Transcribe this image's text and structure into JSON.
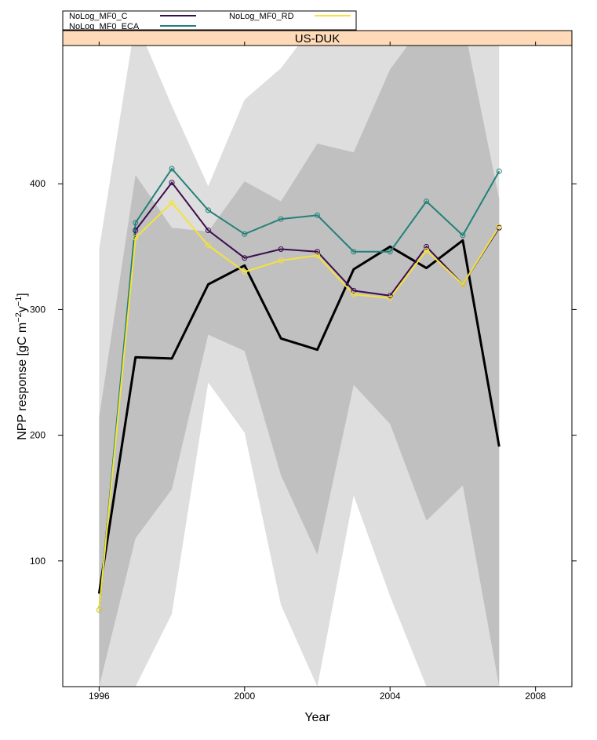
{
  "chart_data": {
    "type": "line",
    "panel_title": "US-DUK",
    "xlabel": "Year",
    "ylabel": "NPP response [gC m^-2 y^-1]",
    "xlim": [
      1995,
      2009
    ],
    "ylim": [
      0,
      510
    ],
    "x_ticks": [
      1996,
      2000,
      2004,
      2008
    ],
    "y_ticks": [
      100,
      200,
      300,
      400
    ],
    "legend_placement": "top-left, outside plot",
    "colors": {
      "strip_fill": "#ffdab9",
      "band_outer": "#dedede",
      "band_inner": "#c0c0c0",
      "observed": "#000000"
    },
    "x": [
      1996,
      1997,
      1998,
      1999,
      2000,
      2001,
      2002,
      2003,
      2004,
      2005,
      2006,
      2007
    ],
    "bands": [
      {
        "id": "outer",
        "lower": [
          0,
          0,
          58,
          242,
          202,
          65,
          0,
          152,
          72,
          0,
          0,
          0
        ],
        "upper": [
          348,
          530,
          462,
          398,
          467,
          492,
          530,
          530,
          530,
          530,
          530,
          530
        ]
      },
      {
        "id": "inner",
        "lower": [
          0,
          118,
          157,
          280,
          267,
          168,
          105,
          240,
          209,
          132,
          160,
          0
        ],
        "upper": [
          214,
          407,
          365,
          362,
          402,
          386,
          432,
          425,
          491,
          530,
          530,
          388
        ]
      }
    ],
    "observed": {
      "values": [
        74,
        262,
        261,
        320,
        335,
        277,
        268,
        332,
        350,
        333,
        355,
        191
      ]
    },
    "series": [
      {
        "name": "NoLog_MF0_C",
        "color": "#3b0f4f",
        "values": [
          61,
          363,
          401,
          363,
          341,
          348,
          346,
          315,
          311,
          350,
          320,
          365
        ]
      },
      {
        "name": "NoLog_MF0_ECA",
        "color": "#23807a",
        "values": [
          61,
          369,
          412,
          379,
          360,
          372,
          375,
          346,
          346,
          386,
          359,
          410
        ]
      },
      {
        "name": "NoLog_MF0_RD",
        "color": "#f4e23b",
        "values": [
          61,
          357,
          385,
          351,
          330,
          339,
          343,
          312,
          309,
          347,
          320,
          366
        ]
      }
    ]
  }
}
